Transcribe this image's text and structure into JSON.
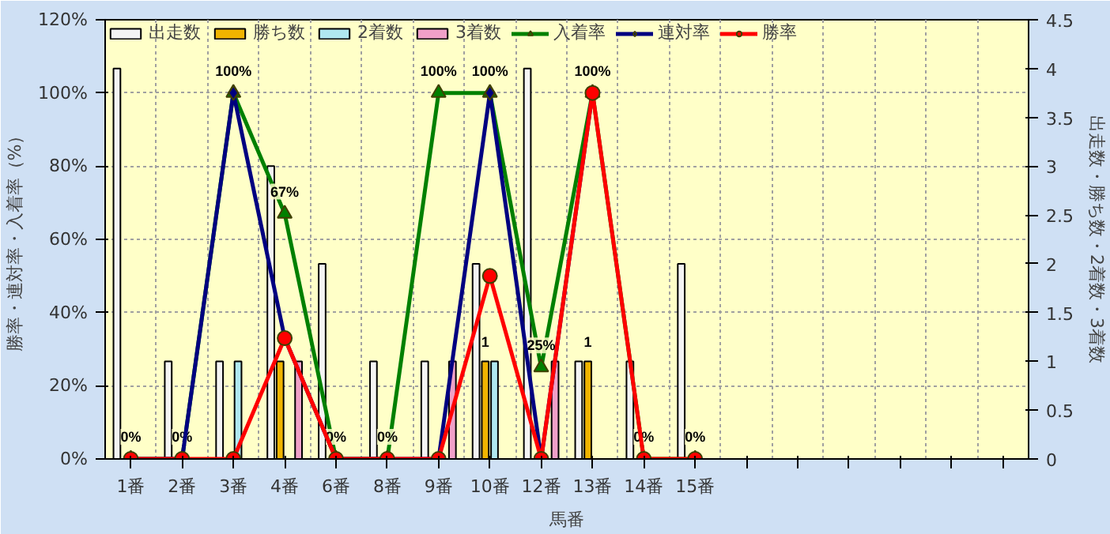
{
  "chart_data": {
    "type": "bar",
    "xlabel": "馬番",
    "ylabel": "勝率・連対率・入着率（%）",
    "y2label": "出走数・勝ち数・2着数・3着数",
    "categories": [
      "1番",
      "2番",
      "3番",
      "4番",
      "6番",
      "8番",
      "9番",
      "10番",
      "12番",
      "13番",
      "14番",
      "15番",
      null,
      null,
      null,
      null,
      null,
      null
    ],
    "series": [
      {
        "name": "出走数",
        "axis": "y2",
        "color": "#f4f4f4",
        "values": [
          4,
          1,
          1,
          3,
          2,
          1,
          1,
          2,
          4,
          1,
          1,
          2,
          null,
          null,
          null,
          null,
          null,
          null
        ]
      },
      {
        "name": "勝ち数",
        "axis": "y2",
        "color": "#f0b400",
        "values": [
          null,
          null,
          null,
          1,
          null,
          null,
          null,
          1,
          null,
          1,
          null,
          null,
          null,
          null,
          null,
          null,
          null,
          null
        ],
        "value_labels": [
          null,
          null,
          null,
          null,
          null,
          null,
          null,
          "1",
          null,
          "1",
          null,
          null,
          null,
          null,
          null,
          null,
          null,
          null
        ]
      },
      {
        "name": "2着数",
        "axis": "y2",
        "color": "#b0e8f0",
        "values": [
          null,
          null,
          1,
          null,
          null,
          null,
          null,
          1,
          null,
          null,
          null,
          null,
          null,
          null,
          null,
          null,
          null,
          null
        ]
      },
      {
        "name": "3着数",
        "axis": "y2",
        "color": "#f0a0c8",
        "values": [
          null,
          null,
          null,
          1,
          null,
          null,
          1,
          null,
          1,
          null,
          null,
          null,
          null,
          null,
          null,
          null,
          null,
          null
        ]
      },
      {
        "name": "入着率",
        "type": "line",
        "color": "#008000",
        "marker": "triangle",
        "values": [
          0,
          0,
          100,
          67,
          0,
          0,
          100,
          100,
          25,
          100,
          0,
          0,
          null,
          null,
          null,
          null,
          null,
          null
        ],
        "value_labels": [
          "0%",
          "0%",
          "100%",
          "67%",
          "0%",
          "0%",
          "100%",
          "100%",
          "25%",
          "100%",
          "0%",
          "0%",
          null,
          null,
          null,
          null,
          null,
          null
        ]
      },
      {
        "name": "連対率",
        "type": "line",
        "color": "#000080",
        "marker": "diamond",
        "values": [
          0,
          0,
          100,
          33,
          0,
          0,
          0,
          100,
          0,
          100,
          null,
          null,
          null,
          null,
          null,
          null,
          null,
          null
        ]
      },
      {
        "name": "勝率",
        "type": "line",
        "color": "#ff0000",
        "marker": "circle",
        "values": [
          0,
          0,
          0,
          33,
          0,
          0,
          0,
          50,
          0,
          100,
          0,
          0,
          null,
          null,
          null,
          null,
          null,
          null
        ]
      }
    ],
    "ylim": [
      0,
      120
    ],
    "yticks": [
      {
        "value": 0,
        "label": "0%"
      },
      {
        "value": 20,
        "label": "20%"
      },
      {
        "value": 40,
        "label": "40%"
      },
      {
        "value": 60,
        "label": "60%"
      },
      {
        "value": 80,
        "label": "80%"
      },
      {
        "value": 100,
        "label": "100%"
      },
      {
        "value": 120,
        "label": "120%"
      }
    ],
    "y2lim": [
      0,
      4.5
    ],
    "y2ticks": [
      0,
      0.5,
      1,
      1.5,
      2,
      2.5,
      3,
      3.5,
      4,
      4.5
    ],
    "grid": true,
    "legend": "top",
    "line_style": "solid"
  }
}
